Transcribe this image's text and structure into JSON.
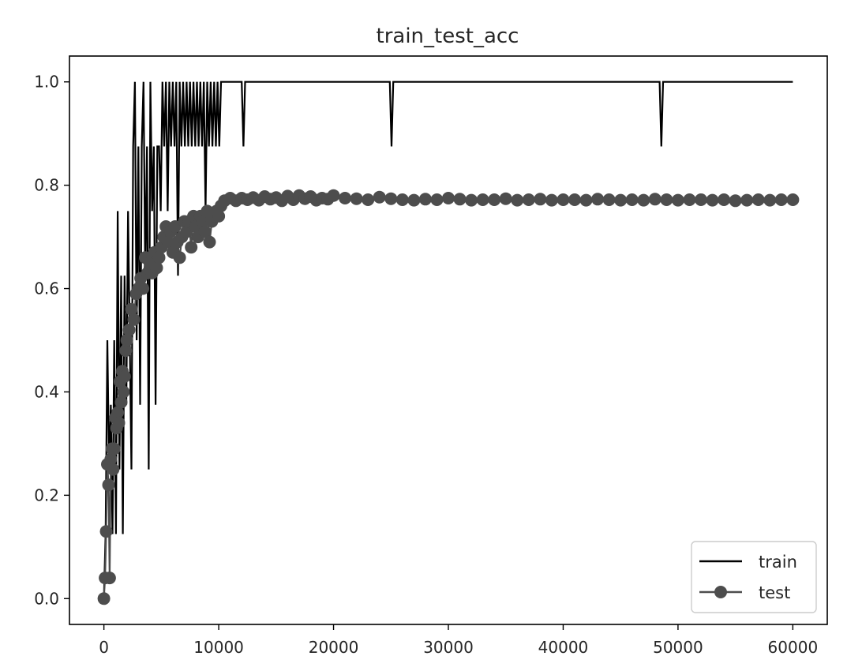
{
  "chart_data": {
    "type": "line",
    "title": "train_test_acc",
    "xlabel": "",
    "ylabel": "",
    "xlim": [
      -3000,
      63000
    ],
    "ylim": [
      -0.05,
      1.05
    ],
    "xticks": [
      0,
      10000,
      20000,
      30000,
      40000,
      50000,
      60000
    ],
    "xtick_labels": [
      "0",
      "10000",
      "20000",
      "30000",
      "40000",
      "50000",
      "60000"
    ],
    "yticks": [
      0.0,
      0.2,
      0.4,
      0.6,
      0.8,
      1.0
    ],
    "ytick_labels": [
      "0.0",
      "0.2",
      "0.4",
      "0.6",
      "0.8",
      "1.0"
    ],
    "grid": false,
    "legend": {
      "position": "bottom-right",
      "entries": [
        "train",
        "test"
      ]
    },
    "series": [
      {
        "name": "train",
        "color": "#000000",
        "marker": "none",
        "x": [
          0,
          150,
          300,
          450,
          600,
          750,
          900,
          1050,
          1200,
          1350,
          1500,
          1650,
          1800,
          1950,
          2100,
          2250,
          2400,
          2550,
          2700,
          2850,
          3000,
          3150,
          3300,
          3450,
          3600,
          3750,
          3900,
          4050,
          4200,
          4350,
          4500,
          4650,
          4800,
          4950,
          5100,
          5250,
          5400,
          5550,
          5700,
          5850,
          6000,
          6150,
          6300,
          6450,
          6600,
          6750,
          6900,
          7050,
          7200,
          7350,
          7500,
          7650,
          7800,
          7950,
          8100,
          8250,
          8400,
          8550,
          8700,
          8850,
          9000,
          9150,
          9300,
          9450,
          9600,
          9750,
          9900,
          10050,
          10200,
          10400,
          12000,
          12150,
          12300,
          24900,
          25050,
          25200,
          48400,
          48550,
          48700,
          60000
        ],
        "y": [
          0.0,
          0.125,
          0.5,
          0.25,
          0.375,
          0.125,
          0.5,
          0.125,
          0.75,
          0.25,
          0.625,
          0.125,
          0.625,
          0.375,
          0.75,
          0.5,
          0.25,
          0.875,
          1.0,
          0.5,
          0.875,
          0.375,
          0.875,
          1.0,
          0.625,
          0.875,
          0.25,
          1.0,
          0.75,
          0.875,
          0.375,
          0.875,
          0.875,
          0.75,
          1.0,
          0.875,
          1.0,
          0.75,
          1.0,
          0.875,
          1.0,
          0.875,
          1.0,
          0.625,
          1.0,
          0.875,
          1.0,
          0.875,
          1.0,
          0.875,
          1.0,
          0.875,
          1.0,
          0.875,
          1.0,
          0.875,
          1.0,
          0.875,
          1.0,
          0.75,
          1.0,
          0.875,
          1.0,
          0.875,
          1.0,
          0.875,
          1.0,
          0.875,
          1.0,
          1.0,
          1.0,
          0.875,
          1.0,
          1.0,
          0.875,
          1.0,
          1.0,
          0.875,
          1.0,
          1.0
        ]
      },
      {
        "name": "test",
        "color": "#4d4d4d",
        "marker": "circle",
        "x": [
          0,
          100,
          200,
          300,
          400,
          500,
          600,
          700,
          800,
          900,
          1000,
          1100,
          1200,
          1300,
          1400,
          1500,
          1600,
          1700,
          1800,
          1900,
          2000,
          2200,
          2400,
          2600,
          2800,
          3000,
          3200,
          3400,
          3600,
          3800,
          4000,
          4200,
          4400,
          4600,
          4800,
          5000,
          5200,
          5400,
          5600,
          5800,
          6000,
          6200,
          6400,
          6600,
          6800,
          7000,
          7200,
          7400,
          7600,
          7800,
          8000,
          8200,
          8400,
          8600,
          8800,
          9000,
          9200,
          9400,
          9600,
          9800,
          10000,
          10200,
          10500,
          11000,
          11500,
          12000,
          12500,
          13000,
          13500,
          14000,
          14500,
          15000,
          15500,
          16000,
          16500,
          17000,
          17500,
          18000,
          18500,
          19000,
          19500,
          20000,
          21000,
          22000,
          23000,
          24000,
          25000,
          26000,
          27000,
          28000,
          29000,
          30000,
          31000,
          32000,
          33000,
          34000,
          35000,
          36000,
          37000,
          38000,
          39000,
          40000,
          41000,
          42000,
          43000,
          44000,
          45000,
          46000,
          47000,
          48000,
          49000,
          50000,
          51000,
          52000,
          53000,
          54000,
          55000,
          56000,
          57000,
          58000,
          59000,
          60000
        ],
        "y": [
          0.0,
          0.04,
          0.13,
          0.26,
          0.22,
          0.04,
          0.27,
          0.29,
          0.25,
          0.29,
          0.35,
          0.33,
          0.36,
          0.34,
          0.42,
          0.38,
          0.44,
          0.4,
          0.43,
          0.48,
          0.5,
          0.52,
          0.56,
          0.54,
          0.59,
          0.6,
          0.62,
          0.6,
          0.66,
          0.63,
          0.65,
          0.63,
          0.67,
          0.64,
          0.66,
          0.68,
          0.7,
          0.72,
          0.69,
          0.71,
          0.67,
          0.72,
          0.69,
          0.66,
          0.7,
          0.73,
          0.71,
          0.73,
          0.68,
          0.74,
          0.72,
          0.7,
          0.74,
          0.73,
          0.71,
          0.75,
          0.69,
          0.73,
          0.74,
          0.75,
          0.74,
          0.76,
          0.77,
          0.775,
          0.77,
          0.775,
          0.772,
          0.776,
          0.771,
          0.778,
          0.773,
          0.776,
          0.77,
          0.779,
          0.772,
          0.78,
          0.774,
          0.778,
          0.771,
          0.775,
          0.773,
          0.78,
          0.775,
          0.774,
          0.772,
          0.777,
          0.774,
          0.772,
          0.771,
          0.773,
          0.772,
          0.775,
          0.773,
          0.771,
          0.772,
          0.772,
          0.774,
          0.771,
          0.772,
          0.773,
          0.771,
          0.772,
          0.772,
          0.771,
          0.773,
          0.772,
          0.771,
          0.772,
          0.771,
          0.773,
          0.772,
          0.771,
          0.772,
          0.772,
          0.771,
          0.772,
          0.77,
          0.771,
          0.772,
          0.771,
          0.772,
          0.772
        ]
      }
    ]
  }
}
